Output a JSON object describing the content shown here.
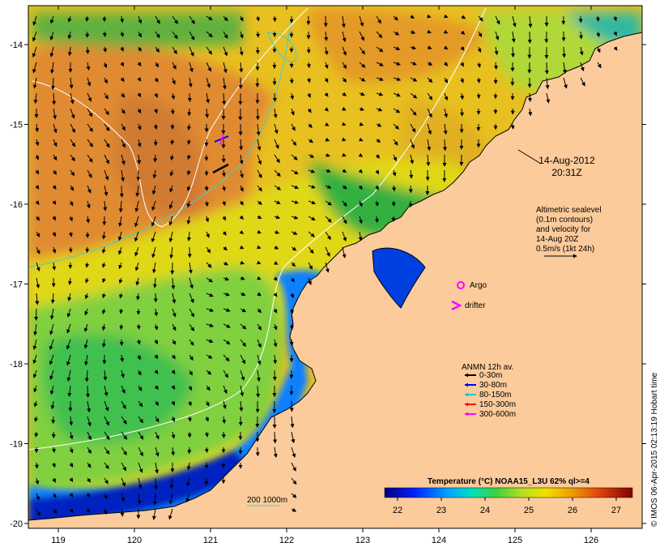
{
  "map": {
    "date_line": "14-Aug-2012",
    "time_line": "20:31Z",
    "altimetry_text": [
      "Altimetric sealevel",
      "(0.1m contours)",
      "and velocity for",
      "14-Aug 20Z",
      "0.5m/s (1kt 24h)"
    ],
    "argo_label": "Argo",
    "drifter_label": "drifter",
    "anmn_title": "ANMN 12h av.",
    "anmn_legend": [
      {
        "label": "0-30m",
        "color": "#000000"
      },
      {
        "label": "30-80m",
        "color": "#0000ff"
      },
      {
        "label": "80-150m",
        "color": "#00d0d0"
      },
      {
        "label": "150-300m",
        "color": "#ff0000"
      },
      {
        "label": "300-600m",
        "color": "#ff00ff"
      }
    ],
    "isobath_label": "200  1000m",
    "colorbar_title": "Temperature (°C) NOAA15_L3U 62% ql>=4",
    "colorbar_ticks": [
      "22",
      "23",
      "24",
      "25",
      "26",
      "27"
    ],
    "x_ticks": [
      "119",
      "120",
      "121",
      "122",
      "123",
      "124",
      "125",
      "126"
    ],
    "y_ticks": [
      "-14",
      "-15",
      "-16",
      "-17",
      "-18",
      "-19",
      "-20"
    ],
    "credit": "© IMOS 06-Apr-2015 02:13:19 Hobart time",
    "colors": {
      "land": "#fbcb9b",
      "warm": "#e89a2a",
      "mid": "#e8d810",
      "green": "#40c040",
      "cool": "#0030c0",
      "isobath": "#40d0d0"
    }
  }
}
